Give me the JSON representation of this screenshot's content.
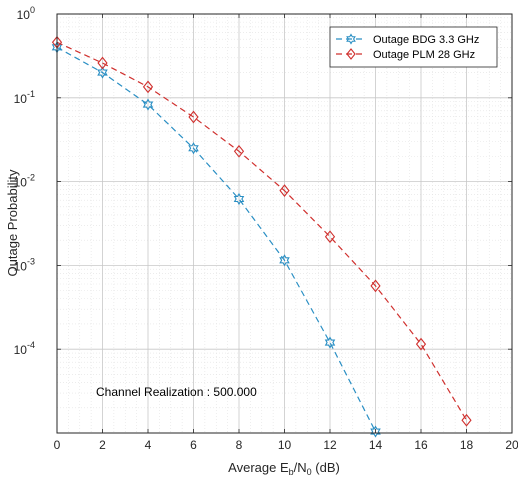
{
  "chart_data": {
    "type": "line",
    "xlabel": {
      "base": "Average E",
      "sub1": "b",
      "mid": "/N",
      "sub2": "0",
      "tail": " (dB)"
    },
    "ylabel": "Outage Probability",
    "xlim": [
      0,
      20
    ],
    "ylim": [
      1e-05,
      1
    ],
    "yscale": "log",
    "grid": true,
    "minor_grid": true,
    "legend_position": "top-right",
    "x_ticks": [
      "0",
      "2",
      "4",
      "6",
      "8",
      "10",
      "12",
      "14",
      "16",
      "18",
      "20"
    ],
    "y_ticks": [
      {
        "base": "10",
        "exp": "0"
      },
      {
        "base": "10",
        "exp": "-1"
      },
      {
        "base": "10",
        "exp": "-2"
      },
      {
        "base": "10",
        "exp": "-3"
      },
      {
        "base": "10",
        "exp": "-4"
      }
    ],
    "annotation": "Channel Realization : 500.000",
    "series": [
      {
        "name": "Outage BDG 3.3 GHz",
        "color": "#2a8fc4",
        "marker": "hexagram",
        "line_style": "dashed",
        "x": [
          0,
          2,
          4,
          6,
          8,
          10,
          12,
          14
        ],
        "y": [
          0.4,
          0.2,
          0.083,
          0.025,
          0.0062,
          0.00115,
          0.00012,
          1.04e-05
        ]
      },
      {
        "name": "Outage PLM 28 GHz",
        "color": "#d0302e",
        "marker": "diamond",
        "line_style": "dashed",
        "x": [
          0,
          2,
          4,
          6,
          8,
          10,
          12,
          14,
          16,
          18
        ],
        "y": [
          0.46,
          0.26,
          0.135,
          0.059,
          0.023,
          0.0078,
          0.0022,
          0.00057,
          0.000115,
          1.42e-05
        ]
      }
    ]
  }
}
